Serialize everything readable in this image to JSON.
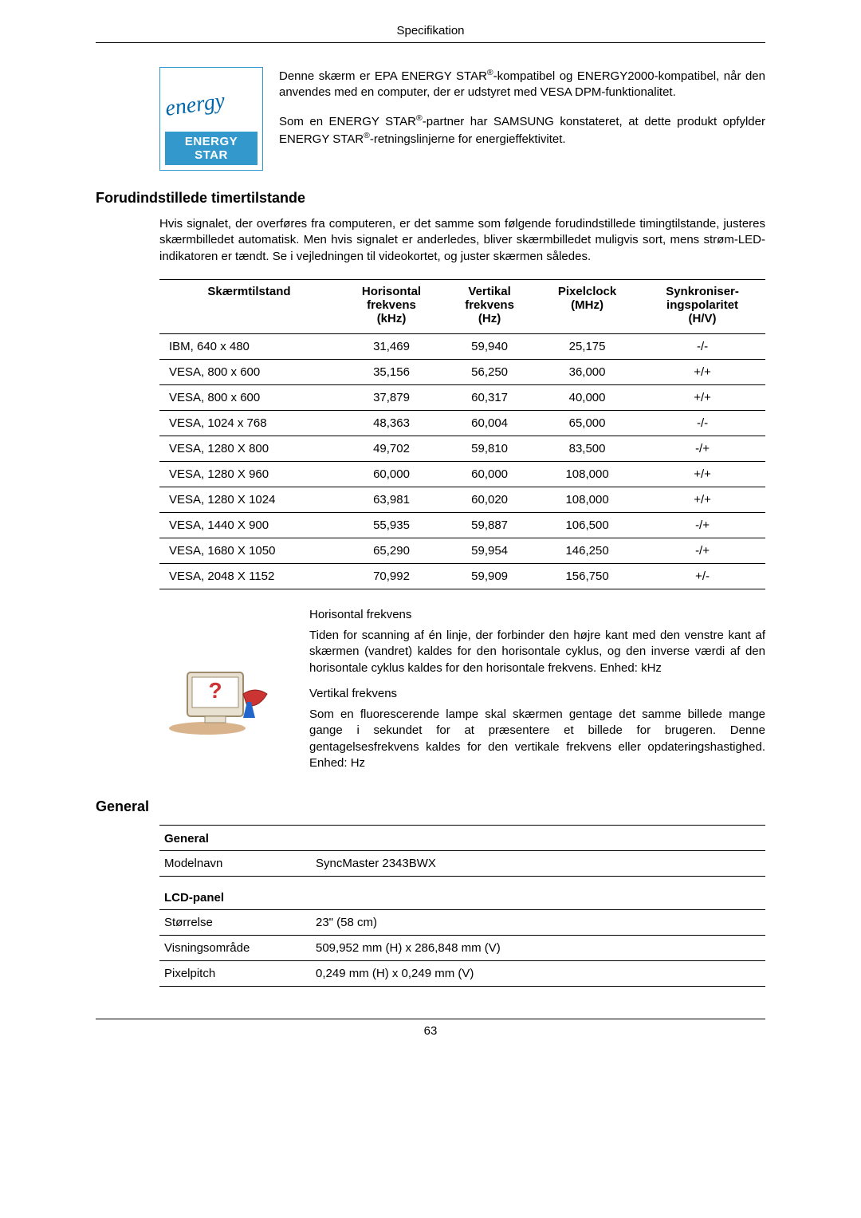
{
  "page": {
    "header_title": "Specifikation",
    "page_number": "63"
  },
  "intro": {
    "logo_script": "energy",
    "logo_label": "ENERGY STAR",
    "para1_pre": "Denne skærm er EPA ENERGY STAR",
    "para1_post": "-kompatibel og ENERGY2000-kompatibel, når den anvendes med en computer, der er udstyret med VESA DPM-funktionalitet.",
    "para2_pre": "Som en ENERGY STAR",
    "para2_mid": "-partner har SAMSUNG konstateret, at dette produkt opfylder ENERGY STAR",
    "para2_post": "-retningslinjerne for energieffektivitet.",
    "reg_mark": "®"
  },
  "timing": {
    "heading": "Forudindstillede timertilstande",
    "body": "Hvis signalet, der overføres fra computeren, er det samme som følgende forudindstillede timingtilstande, justeres skærmbilledet automatisk. Men hvis signalet er anderledes, bliver skærmbilledet muligvis sort, mens strøm-LED-indikatoren er tændt. Se i vejledningen til videokortet, og juster skærmen således.",
    "headers": {
      "c0": "Skærmtilstand",
      "c1a": "Horisontal",
      "c1b": "frekvens",
      "c1c": "(kHz)",
      "c2a": "Vertikal",
      "c2b": "frekvens",
      "c2c": "(Hz)",
      "c3a": "Pixelclock",
      "c3b": "(MHz)",
      "c4a": "Synkroniser-",
      "c4b": "ingspolaritet",
      "c4c": "(H/V)"
    },
    "rows": [
      {
        "mode": "IBM, 640 x 480",
        "h": "31,469",
        "v": "59,940",
        "p": "25,175",
        "s": "-/-"
      },
      {
        "mode": "VESA, 800 x 600",
        "h": "35,156",
        "v": "56,250",
        "p": "36,000",
        "s": "+/+"
      },
      {
        "mode": "VESA, 800 x 600",
        "h": "37,879",
        "v": "60,317",
        "p": "40,000",
        "s": "+/+"
      },
      {
        "mode": "VESA, 1024 x 768",
        "h": "48,363",
        "v": "60,004",
        "p": "65,000",
        "s": "-/-"
      },
      {
        "mode": "VESA, 1280 X 800",
        "h": "49,702",
        "v": "59,810",
        "p": "83,500",
        "s": "-/+"
      },
      {
        "mode": "VESA, 1280 X 960",
        "h": "60,000",
        "v": "60,000",
        "p": "108,000",
        "s": "+/+"
      },
      {
        "mode": "VESA, 1280 X 1024",
        "h": "63,981",
        "v": "60,020",
        "p": "108,000",
        "s": "+/+"
      },
      {
        "mode": "VESA, 1440 X 900",
        "h": "55,935",
        "v": "59,887",
        "p": "106,500",
        "s": "-/+"
      },
      {
        "mode": "VESA, 1680 X 1050",
        "h": "65,290",
        "v": "59,954",
        "p": "146,250",
        "s": "-/+"
      },
      {
        "mode": "VESA, 2048 X 1152",
        "h": "70,992",
        "v": "59,909",
        "p": "156,750",
        "s": "+/-"
      }
    ]
  },
  "freq": {
    "h_title": "Horisontal frekvens",
    "h_body": "Tiden for scanning af én linje, der forbinder den højre kant med den venstre kant af skærmen (vandret) kaldes for den horisontale cyklus, og den inverse værdi af den horisontale cyklus kaldes for den horisontale frekvens. Enhed: kHz",
    "v_title": "Vertikal frekvens",
    "v_body": "Som en fluorescerende lampe skal skærmen gentage det samme billede mange gange i sekundet for at præsentere et billede for brugeren. Denne gentagelsesfrekvens kaldes for den vertikale frekvens eller opdateringshastighed. Enhed: Hz"
  },
  "general": {
    "heading": "General",
    "sect1": "General",
    "r1a": "Modelnavn",
    "r1b": "SyncMaster 2343BWX",
    "sect2": "LCD-panel",
    "r2a": "Størrelse",
    "r2b": "23\" (58 cm)",
    "r3a": "Visningsområde",
    "r3b": "509,952 mm (H) x 286,848 mm (V)",
    "r4a": "Pixelpitch",
    "r4b": "0,249 mm (H) x 0,249 mm (V)"
  }
}
